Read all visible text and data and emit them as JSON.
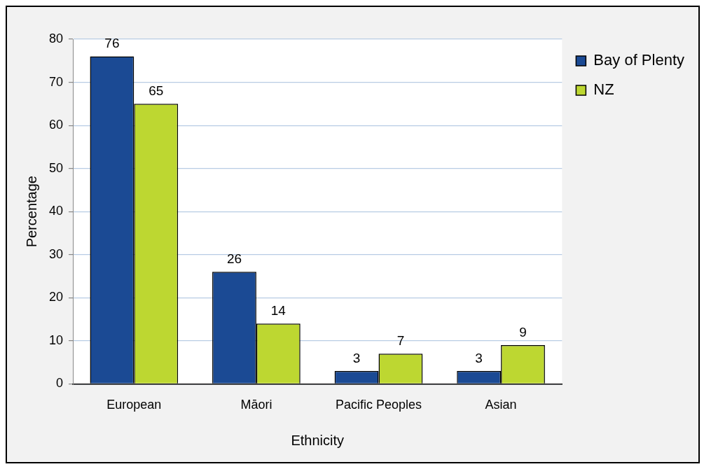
{
  "chart_data": {
    "type": "bar",
    "xlabel": "Ethnicity",
    "ylabel": "Percentage",
    "categories": [
      "European",
      "Māori",
      "Pacific Peoples",
      "Asian"
    ],
    "series": [
      {
        "name": "Bay of Plenty",
        "color": "#1b4a94",
        "values": [
          76,
          26,
          3,
          3
        ]
      },
      {
        "name": "NZ",
        "color": "#bdd731",
        "values": [
          65,
          14,
          7,
          9
        ]
      }
    ],
    "ylim": [
      0,
      80
    ],
    "yticks": [
      0,
      10,
      20,
      30,
      40,
      50,
      60,
      70,
      80
    ],
    "grid": "y",
    "legend": "top right",
    "data_labels": true
  }
}
